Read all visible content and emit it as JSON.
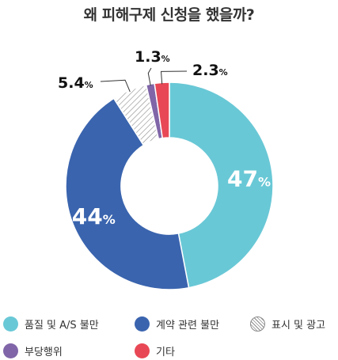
{
  "title": "왜 피해구제 신청을 했을까?",
  "percent_sign": "%",
  "chart_data": {
    "type": "pie",
    "donut": true,
    "unit": "%",
    "categories": [
      "품질 및 A/S 불만",
      "계약 관련 불만",
      "표시 및 광고",
      "부당행위",
      "기타"
    ],
    "values": [
      47,
      44,
      5.4,
      1.3,
      2.3
    ],
    "value_labels": [
      "47",
      "44",
      "5.4",
      "1.3",
      "2.3"
    ],
    "colors": [
      "#69c8d6",
      "#3a64ae",
      "#ffffff",
      "#8066a8",
      "#e84855"
    ],
    "hatched": [
      false,
      false,
      true,
      false,
      false
    ],
    "legend": [
      {
        "label": "품질 및 A/S 불만",
        "color": "#69c8d6",
        "hatched": false
      },
      {
        "label": "계약 관련 불만",
        "color": "#3a64ae",
        "hatched": false
      },
      {
        "label": "표시 및 광고",
        "color": "#ffffff",
        "hatched": true
      },
      {
        "label": "부당행위",
        "color": "#8066a8",
        "hatched": false
      },
      {
        "label": "기타",
        "color": "#e84855",
        "hatched": false
      }
    ],
    "legend_position": "bottom"
  }
}
